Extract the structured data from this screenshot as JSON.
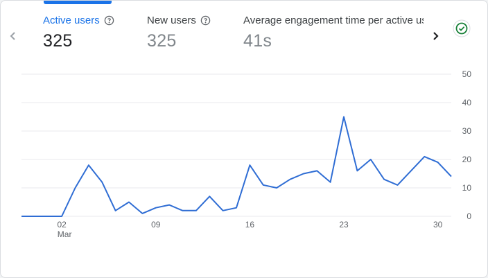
{
  "metrics": [
    {
      "label": "Active users",
      "value": "325",
      "active": true
    },
    {
      "label": "New users",
      "value": "325",
      "active": false
    },
    {
      "label": "Average engagement time per active us",
      "value": "41s",
      "active": false
    }
  ],
  "icons": {
    "help": "help-circle-icon",
    "prev": "chevron-left-icon",
    "next": "chevron-right-icon",
    "status": "check-circle-icon"
  },
  "colors": {
    "accent": "#1a73e8",
    "status_green": "#188038",
    "series": "#2f6dd4"
  },
  "chart_data": {
    "type": "line",
    "x_tick_labels": [
      "02",
      "09",
      "16",
      "23",
      "30"
    ],
    "x_tick_sublabel": "Mar",
    "y_ticks": [
      0,
      10,
      20,
      30,
      40,
      50
    ],
    "ylim": [
      0,
      50
    ],
    "grid": true,
    "series": [
      {
        "values": [
          0,
          0,
          0,
          0,
          10,
          18,
          12,
          2,
          5,
          1,
          3,
          4,
          2,
          2,
          7,
          2,
          3,
          18,
          11,
          10,
          13,
          15,
          16,
          12,
          35,
          16,
          20,
          13,
          11,
          16,
          21,
          19,
          14
        ]
      }
    ]
  }
}
